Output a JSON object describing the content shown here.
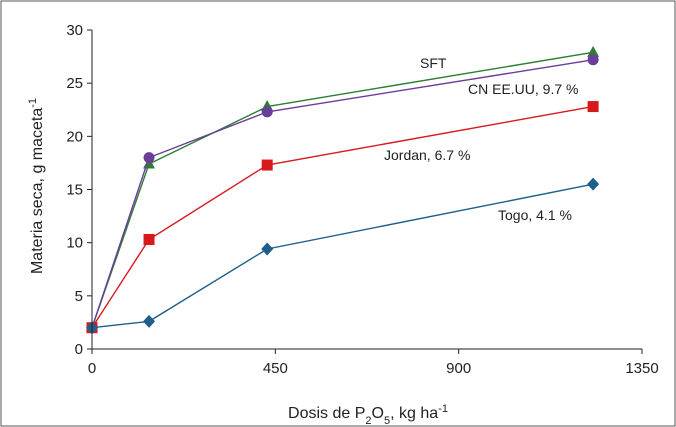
{
  "chart_data": {
    "type": "line",
    "title": "",
    "xlabel": {
      "base": "Dosis de P",
      "sub1": "2",
      "mid": "O",
      "sub2": "5",
      "tail": ", kg ha",
      "sup": "-1"
    },
    "ylabel": {
      "base": "Materia seca, g maceta",
      "sup": "-1"
    },
    "xlim": [
      0,
      1350
    ],
    "ylim": [
      0,
      30
    ],
    "xticks": [
      "0",
      "450",
      "900",
      "1350"
    ],
    "yticks": [
      "0",
      "5",
      "10",
      "15",
      "20",
      "25",
      "30"
    ],
    "grid": false,
    "legend": "none",
    "series": [
      {
        "name": "SFT",
        "color": "#2e7d32",
        "marker": "triangle",
        "x": [
          0,
          140,
          430,
          1230
        ],
        "y": [
          2.0,
          17.4,
          22.8,
          27.9
        ]
      },
      {
        "name": "CN EE.UU, 9.7 %",
        "color": "#6a3d9a",
        "marker": "circle",
        "x": [
          0,
          140,
          430,
          1230
        ],
        "y": [
          2.0,
          18.0,
          22.3,
          27.2
        ]
      },
      {
        "name": "Jordan, 6.7 %",
        "color": "#d7191c",
        "marker": "square",
        "x": [
          0,
          140,
          430,
          1230
        ],
        "y": [
          2.0,
          10.3,
          17.3,
          22.8
        ]
      },
      {
        "name": "Togo, 4.1 %",
        "color": "#1f5f8b",
        "marker": "diamond",
        "x": [
          0,
          140,
          430,
          1230
        ],
        "y": [
          2.0,
          2.6,
          9.4,
          15.5
        ]
      }
    ]
  }
}
